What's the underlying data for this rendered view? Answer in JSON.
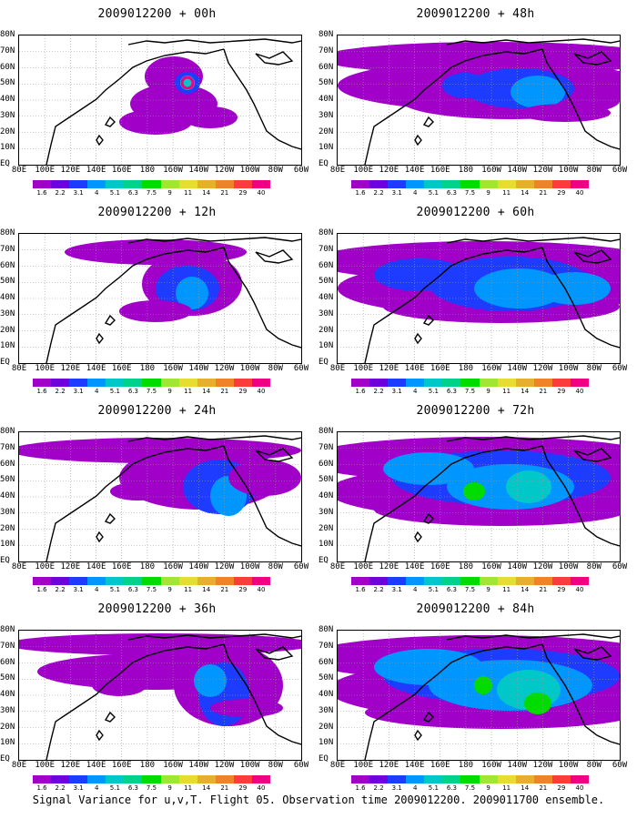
{
  "caption": "Signal Variance for u,v,T. Flight 05. Observation time 2009012200. 2009011700 ensemble.",
  "y_labels": [
    "80N",
    "70N",
    "60N",
    "50N",
    "40N",
    "30N",
    "20N",
    "10N",
    "EQ"
  ],
  "x_labels": [
    "80E",
    "100E",
    "120E",
    "140E",
    "160E",
    "180",
    "160W",
    "140W",
    "120W",
    "100W",
    "80W",
    "60W"
  ],
  "colorbar": {
    "colors": [
      "#a000c8",
      "#6e00dc",
      "#1e3cff",
      "#0096ff",
      "#00c8c8",
      "#00d28c",
      "#00dc00",
      "#a0e632",
      "#e6dc32",
      "#e6af2d",
      "#f08228",
      "#fa3c3c",
      "#f00082"
    ],
    "labels": [
      "1.6",
      "2.2",
      "3.1",
      "4",
      "5.1",
      "6.3",
      "7.5",
      "9",
      "11",
      "14",
      "21",
      "29",
      "40"
    ]
  },
  "panels": [
    {
      "title": "2009012200 + 00h"
    },
    {
      "title": "2009012200 + 48h"
    },
    {
      "title": "2009012200 + 12h"
    },
    {
      "title": "2009012200 + 60h"
    },
    {
      "title": "2009012200 + 24h"
    },
    {
      "title": "2009012200 + 72h"
    },
    {
      "title": "2009012200 + 36h"
    },
    {
      "title": "2009012200 + 84h"
    }
  ]
}
